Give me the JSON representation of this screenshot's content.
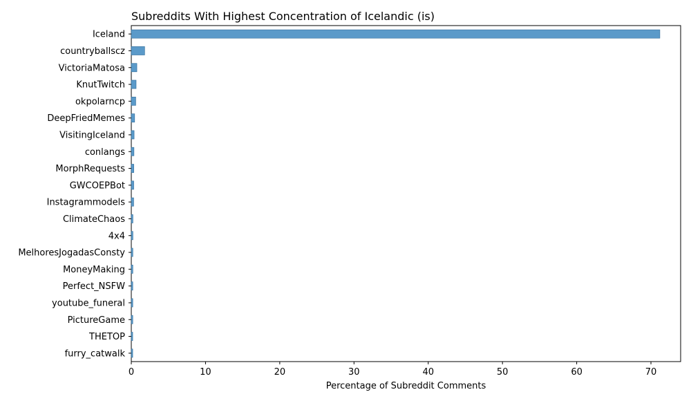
{
  "chart_data": {
    "type": "bar",
    "orientation": "horizontal",
    "title": "Subreddits With Highest Concentration of Icelandic (is)",
    "xlabel": "Percentage of Subreddit Comments",
    "ylabel": "",
    "xlim": [
      0,
      74
    ],
    "xticks": [
      0,
      10,
      20,
      30,
      40,
      50,
      60,
      70
    ],
    "grid": false,
    "bar_color": "#5b9ac9",
    "categories": [
      "Iceland",
      "countryballscz",
      "VictoriaMatosa",
      "KnutTwitch",
      "okpolarncp",
      "DeepFriedMemes",
      "VisitingIceland",
      "conlangs",
      "MorphRequests",
      "GWCOEPBot",
      "Instagrammodels",
      "ClimateChaos",
      "4x4",
      "MelhoresJogadasConsty",
      "MoneyMaking",
      "Perfect_NSFW",
      "youtube_funeral",
      "PictureGame",
      "THETOP",
      "furry_catwalk"
    ],
    "values": [
      71.2,
      1.8,
      0.75,
      0.65,
      0.6,
      0.45,
      0.38,
      0.36,
      0.34,
      0.33,
      0.32,
      0.22,
      0.22,
      0.21,
      0.21,
      0.2,
      0.2,
      0.2,
      0.19,
      0.19
    ]
  }
}
